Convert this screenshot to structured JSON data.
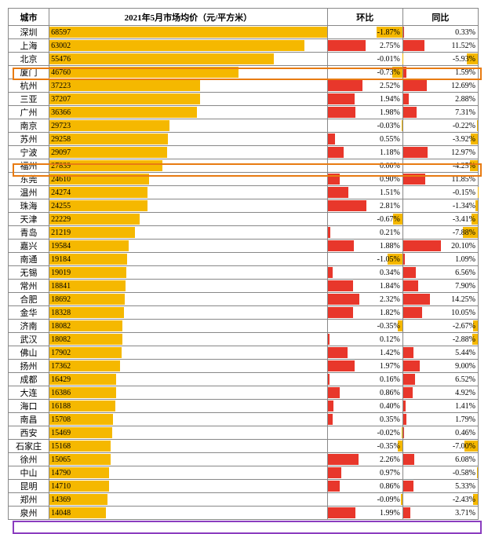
{
  "header": {
    "city": "城市",
    "price": "2021年5月市场均价（元/平方米）",
    "mom": "环比",
    "yoy": "同比"
  },
  "styling": {
    "bar_color": "#f5b800",
    "pos_color": "#e8372b",
    "neg_color": "#f5b800",
    "border_color": "#888888",
    "hl_orange": "#e87b12",
    "hl_purple": "#8b3dbf",
    "price_max": 68597,
    "mom_full_pct": 3.0,
    "yoy_full_pct": 22.0
  },
  "highlights": [
    {
      "row_index": 3,
      "color": "#e87b12"
    },
    {
      "row_index": 10,
      "color": "#e87b12"
    },
    {
      "row_index": 36,
      "color": "#8b3dbf"
    }
  ],
  "rows": [
    {
      "city": "深圳",
      "price": 68597,
      "mom": -1.87,
      "yoy": 0.33
    },
    {
      "city": "上海",
      "price": 63002,
      "mom": 2.75,
      "yoy": 11.52
    },
    {
      "city": "北京",
      "price": 55476,
      "mom": -0.01,
      "yoy": -5.93
    },
    {
      "city": "厦门",
      "price": 46760,
      "mom": -0.73,
      "yoy": 1.59
    },
    {
      "city": "杭州",
      "price": 37223,
      "mom": 2.52,
      "yoy": 12.69
    },
    {
      "city": "三亚",
      "price": 37207,
      "mom": 1.94,
      "yoy": 2.88
    },
    {
      "city": "广州",
      "price": 36366,
      "mom": 1.98,
      "yoy": 7.31
    },
    {
      "city": "南京",
      "price": 29723,
      "mom": -0.03,
      "yoy": -0.22
    },
    {
      "city": "苏州",
      "price": 29258,
      "mom": 0.55,
      "yoy": -3.92
    },
    {
      "city": "宁波",
      "price": 29097,
      "mom": 1.18,
      "yoy": 12.97
    },
    {
      "city": "福州",
      "price": 27839,
      "mom": 0.0,
      "yoy": -4.25
    },
    {
      "city": "东莞",
      "price": 24610,
      "mom": 0.9,
      "yoy": 11.85
    },
    {
      "city": "温州",
      "price": 24274,
      "mom": 1.51,
      "yoy": -0.15
    },
    {
      "city": "珠海",
      "price": 24255,
      "mom": 2.81,
      "yoy": -1.34
    },
    {
      "city": "天津",
      "price": 22229,
      "mom": -0.67,
      "yoy": -3.41
    },
    {
      "city": "青岛",
      "price": 21219,
      "mom": 0.21,
      "yoy": -7.88
    },
    {
      "city": "嘉兴",
      "price": 19584,
      "mom": 1.88,
      "yoy": 20.1
    },
    {
      "city": "南通",
      "price": 19184,
      "mom": -1.05,
      "yoy": 1.09
    },
    {
      "city": "无锡",
      "price": 19019,
      "mom": 0.34,
      "yoy": 6.56
    },
    {
      "city": "常州",
      "price": 18841,
      "mom": 1.84,
      "yoy": 7.9
    },
    {
      "city": "合肥",
      "price": 18692,
      "mom": 2.32,
      "yoy": 14.25
    },
    {
      "city": "金华",
      "price": 18328,
      "mom": 1.82,
      "yoy": 10.05
    },
    {
      "city": "济南",
      "price": 18082,
      "mom": -0.35,
      "yoy": -2.67
    },
    {
      "city": "武汉",
      "price": 18082,
      "mom": 0.12,
      "yoy": -2.88
    },
    {
      "city": "佛山",
      "price": 17902,
      "mom": 1.42,
      "yoy": 5.44
    },
    {
      "city": "扬州",
      "price": 17362,
      "mom": 1.97,
      "yoy": 9.0
    },
    {
      "city": "成都",
      "price": 16429,
      "mom": 0.16,
      "yoy": 6.52
    },
    {
      "city": "大连",
      "price": 16386,
      "mom": 0.86,
      "yoy": 4.92
    },
    {
      "city": "海口",
      "price": 16188,
      "mom": 0.4,
      "yoy": 1.41
    },
    {
      "city": "南昌",
      "price": 15708,
      "mom": 0.35,
      "yoy": 1.79
    },
    {
      "city": "西安",
      "price": 15469,
      "mom": -0.02,
      "yoy": 0.46
    },
    {
      "city": "石家庄",
      "price": 15168,
      "mom": -0.35,
      "yoy": -7.0
    },
    {
      "city": "徐州",
      "price": 15065,
      "mom": 2.26,
      "yoy": 6.08
    },
    {
      "city": "中山",
      "price": 14790,
      "mom": 0.97,
      "yoy": -0.58
    },
    {
      "city": "昆明",
      "price": 14710,
      "mom": 0.86,
      "yoy": 5.33
    },
    {
      "city": "郑州",
      "price": 14369,
      "mom": -0.09,
      "yoy": -2.43
    },
    {
      "city": "泉州",
      "price": 14048,
      "mom": 1.99,
      "yoy": 3.71
    }
  ]
}
